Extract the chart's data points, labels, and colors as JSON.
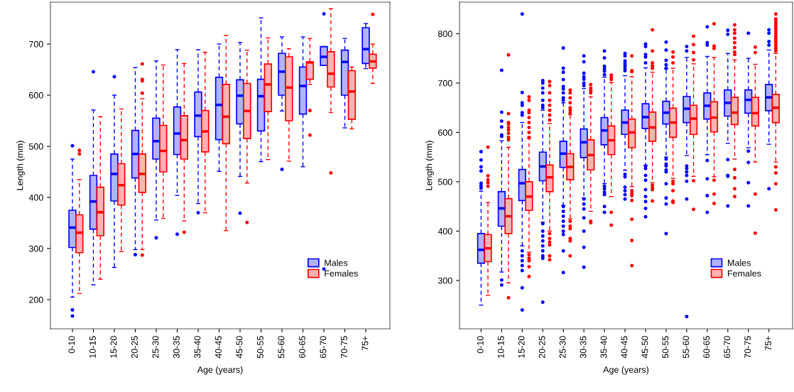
{
  "chart_data": [
    {
      "type": "box",
      "xlabel": "Age (years)",
      "ylabel": "Length (mm)",
      "categories": [
        "0-10",
        "10-15",
        "15-20",
        "20-25",
        "25-30",
        "30-35",
        "35-40",
        "40-45",
        "45-50",
        "50-55",
        "55-60",
        "60-65",
        "65-70",
        "70-75",
        "75+"
      ],
      "ylim": [
        143,
        782
      ],
      "yticks": [
        200,
        300,
        400,
        500,
        600,
        700
      ],
      "legend": "bottom right",
      "grid": false,
      "marker": "circle",
      "line_style": "dashed",
      "series": [
        {
          "name": "Males",
          "color": "#0000ff",
          "boxes": [
            {
              "low": 205,
              "q1": 302,
              "median": 341,
              "q3": 375,
              "high": 475,
              "outliers": [
                501,
                180,
                168
              ]
            },
            {
              "low": 229,
              "q1": 338,
              "median": 392,
              "q3": 443,
              "high": 571,
              "outliers": [
                646
              ]
            },
            {
              "low": 263,
              "q1": 393,
              "median": 446,
              "q3": 485,
              "high": 600,
              "outliers": [
                636
              ]
            },
            {
              "low": 298,
              "q1": 438,
              "median": 485,
              "q3": 531,
              "high": 654,
              "outliers": [
                288
              ]
            },
            {
              "low": 356,
              "q1": 475,
              "median": 510,
              "q3": 555,
              "high": 667,
              "outliers": [
                321
              ]
            },
            {
              "low": 404,
              "q1": 484,
              "median": 525,
              "q3": 577,
              "high": 689,
              "outliers": [
                328
              ]
            },
            {
              "low": 388,
              "q1": 519,
              "median": 560,
              "q3": 606,
              "high": 689,
              "outliers": [
                370
              ]
            },
            {
              "low": 451,
              "q1": 513,
              "median": 581,
              "q3": 635,
              "high": 700
            },
            {
              "low": 441,
              "q1": 544,
              "median": 599,
              "q3": 630,
              "high": 703,
              "outliers": [
                369
              ]
            },
            {
              "low": 470,
              "q1": 530,
              "median": 598,
              "q3": 631,
              "high": 751
            },
            {
              "low": 569,
              "q1": 600,
              "median": 646,
              "q3": 682,
              "high": 714,
              "outliers": [
                455
              ]
            },
            {
              "low": 460,
              "q1": 563,
              "median": 618,
              "q3": 655,
              "high": 714
            },
            {
              "low": 658,
              "q1": 658,
              "median": 675,
              "q3": 695,
              "high": 695,
              "outliers": [
                759,
                260
              ]
            },
            {
              "low": 536,
              "q1": 600,
              "median": 665,
              "q3": 688,
              "high": 711
            },
            {
              "low": 652,
              "q1": 662,
              "median": 690,
              "q3": 732,
              "high": 740
            }
          ]
        },
        {
          "name": "Females",
          "color": "#ff0000",
          "boxes": [
            {
              "low": 212,
              "q1": 292,
              "median": 331,
              "q3": 366,
              "high": 435,
              "outliers": [
                492,
                485
              ]
            },
            {
              "low": 240,
              "q1": 325,
              "median": 371,
              "q3": 420,
              "high": 558
            },
            {
              "low": 294,
              "q1": 385,
              "median": 424,
              "q3": 466,
              "high": 573
            },
            {
              "low": 298,
              "q1": 410,
              "median": 446,
              "q3": 485,
              "high": 593,
              "outliers": [
                661,
                631,
                628,
                604,
                287
              ]
            },
            {
              "low": 359,
              "q1": 450,
              "median": 491,
              "q3": 541,
              "high": 659
            },
            {
              "low": 354,
              "q1": 475,
              "median": 512,
              "q3": 560,
              "high": 662,
              "outliers": [
                332
              ]
            },
            {
              "low": 370,
              "q1": 489,
              "median": 529,
              "q3": 570,
              "high": 684
            },
            {
              "low": 335,
              "q1": 505,
              "median": 558,
              "q3": 621,
              "high": 717
            },
            {
              "low": 428,
              "q1": 515,
              "median": 569,
              "q3": 623,
              "high": 688,
              "outliers": [
                351
              ]
            },
            {
              "low": 474,
              "q1": 568,
              "median": 621,
              "q3": 661,
              "high": 712
            },
            {
              "low": 471,
              "q1": 550,
              "median": 615,
              "q3": 675,
              "high": 691
            },
            {
              "low": 621,
              "q1": 631,
              "median": 664,
              "q3": 665,
              "high": 711,
              "outliers": [
                570,
                522
              ]
            },
            {
              "low": 566,
              "q1": 616,
              "median": 642,
              "q3": 685,
              "high": 769,
              "outliers": [
                448
              ]
            },
            {
              "low": 534,
              "q1": 553,
              "median": 607,
              "q3": 648,
              "high": 655
            },
            {
              "low": 623,
              "q1": 653,
              "median": 666,
              "q3": 680,
              "high": 700,
              "outliers": [
                758
              ]
            }
          ]
        }
      ]
    },
    {
      "type": "box",
      "xlabel": "Age (years)",
      "ylabel": "Length (mm)",
      "categories": [
        "0-10",
        "10-15",
        "15-20",
        "20-25",
        "25-30",
        "30-35",
        "35-40",
        "40-45",
        "45-50",
        "50-55",
        "55-60",
        "60-65",
        "65-70",
        "70-75",
        "75+"
      ],
      "ylim": [
        202,
        864
      ],
      "yticks": [
        300,
        400,
        500,
        600,
        700,
        800
      ],
      "legend": "bottom right",
      "grid": false,
      "marker": "circle",
      "line_style": "dashed",
      "series": [
        {
          "name": "Males",
          "color": "#0000ff",
          "boxes": [
            {
              "low": 250,
              "q1": 335,
              "median": 362,
              "q3": 395,
              "high": 481,
              "outliers": [
                561,
                544,
                530,
                522,
                497,
                492,
                487
              ]
            },
            {
              "low": 317,
              "q1": 410,
              "median": 446,
              "q3": 480,
              "high": 583,
              "outliers": [
                726,
                641,
                623,
                611,
                595,
                592,
                301,
                291
              ]
            },
            {
              "low": 370,
              "q1": 462,
              "median": 497,
              "q3": 525,
              "high": 620,
              "outliers": [
                840,
                681,
                660,
                655,
                640,
                635,
                360,
                350,
                340,
                330,
                320,
                285,
                240
              ]
            },
            {
              "low": 418,
              "q1": 502,
              "median": 531,
              "q3": 560,
              "high": 645,
              "outliers": [
                705,
                700,
                690,
                680,
                665,
                655,
                650,
                415,
                400,
                390,
                380,
                370,
                360,
                350,
                345,
                256
              ]
            },
            {
              "low": 452,
              "q1": 529,
              "median": 557,
              "q3": 582,
              "high": 660,
              "outliers": [
                771,
                730,
                722,
                707,
                693,
                688,
                680,
                670,
                665,
                450,
                440,
                430,
                420,
                410,
                400,
                393,
                360,
                316
              ]
            },
            {
              "low": 467,
              "q1": 549,
              "median": 580,
              "q3": 607,
              "high": 689,
              "outliers": [
                755,
                743,
                720,
                713,
                708,
                700,
                695,
                465,
                455,
                445,
                427,
                400,
                367,
                327
              ]
            },
            {
              "low": 496,
              "q1": 575,
              "median": 604,
              "q3": 630,
              "high": 712,
              "outliers": [
                765,
                751,
                734,
                729,
                724,
                717,
                491,
                486,
                479,
                474,
                450,
                438
              ]
            },
            {
              "low": 523,
              "q1": 596,
              "median": 620,
              "q3": 645,
              "high": 715,
              "outliers": [
                760,
                755,
                745,
                740,
                735,
                730,
                725,
                515,
                510,
                489,
                482,
                474,
                465
              ]
            },
            {
              "low": 533,
              "q1": 608,
              "median": 631,
              "q3": 658,
              "high": 731,
              "outliers": [
                779,
                774,
                758,
                753,
                741,
                532,
                527,
                513,
                503,
                484,
                470,
                460,
                446,
                429
              ]
            },
            {
              "low": 550,
              "q1": 617,
              "median": 640,
              "q3": 663,
              "high": 729,
              "outliers": [
                783,
                767,
                746,
                737,
                730,
                546,
                536,
                532,
                524,
                520,
                496,
                467,
                455,
                395
              ]
            },
            {
              "low": 553,
              "q1": 620,
              "median": 648,
              "q3": 673,
              "high": 752,
              "outliers": [
                774,
                765,
                532,
                527,
                520,
                513,
                501,
                465,
                227
              ]
            },
            {
              "low": 555,
              "q1": 627,
              "median": 654,
              "q3": 680,
              "high": 754,
              "outliers": [
                814,
                782,
                777,
                543,
                506,
                472,
                438
              ]
            },
            {
              "low": 578,
              "q1": 633,
              "median": 660,
              "q3": 686,
              "high": 760,
              "outliers": [
                807,
                799,
                545,
                513,
                511,
                451
              ]
            },
            {
              "low": 569,
              "q1": 639,
              "median": 666,
              "q3": 686,
              "high": 750,
              "outliers": [
                801,
                562,
                539,
                498,
                451
              ]
            },
            {
              "low": 576,
              "q1": 644,
              "median": 671,
              "q3": 697,
              "high": 767,
              "outliers": [
                808,
                801,
                784,
                777,
                486
              ]
            }
          ]
        },
        {
          "name": "Females",
          "color": "#ff0000",
          "boxes": [
            {
              "low": 270,
              "q1": 338,
              "median": 365,
              "q3": 393,
              "high": 458,
              "outliers": [
                570,
                512,
                504,
                498,
                491
              ]
            },
            {
              "low": 295,
              "q1": 395,
              "median": 430,
              "q3": 466,
              "high": 570,
              "outliers": [
                757,
                638,
                620,
                617,
                610,
                605,
                598,
                590,
                585,
                265
              ]
            },
            {
              "low": 357,
              "q1": 442,
              "median": 470,
              "q3": 500,
              "high": 588,
              "outliers": [
                672,
                665,
                645,
                640,
                630,
                620,
                610,
                600,
                590,
                352,
                345,
                340,
                328,
                308
              ]
            },
            {
              "low": 400,
              "q1": 480,
              "median": 509,
              "q3": 534,
              "high": 618,
              "outliers": [
                703,
                695,
                680,
                665,
                655,
                645,
                635,
                625,
                395,
                385,
                378,
                372,
                350,
                342
              ]
            },
            {
              "low": 425,
              "q1": 504,
              "median": 530,
              "q3": 557,
              "high": 636,
              "outliers": [
                686,
                680,
                670,
                660,
                650,
                645,
                640,
                420,
                410,
                405,
                385,
                380,
                350
              ]
            },
            {
              "low": 440,
              "q1": 524,
              "median": 554,
              "q3": 585,
              "high": 672,
              "outliers": [
                697,
                690,
                685,
                680,
                420,
                417
              ]
            },
            {
              "low": 470,
              "q1": 555,
              "median": 584,
              "q3": 613,
              "high": 701,
              "outliers": [
                716,
                711,
                707,
                438,
                412
              ]
            },
            {
              "low": 490,
              "q1": 569,
              "median": 600,
              "q3": 627,
              "high": 713,
              "outliers": [
                755,
                725,
                723,
                482,
                477,
                472,
                462,
                424,
                381,
                330
              ]
            },
            {
              "low": 498,
              "q1": 582,
              "median": 610,
              "q3": 641,
              "high": 722,
              "outliers": [
                808,
                765,
                741,
                735,
                730,
                493,
                488,
                484,
                461
              ]
            },
            {
              "low": 507,
              "q1": 590,
              "median": 620,
              "q3": 649,
              "high": 730,
              "outliers": [
                763,
                753,
                741,
                501,
                496,
                482,
                461,
                458
              ]
            },
            {
              "low": 511,
              "q1": 596,
              "median": 628,
              "q3": 655,
              "high": 739,
              "outliers": [
                795,
                778,
                762,
                747,
                502,
                444
              ]
            },
            {
              "low": 510,
              "q1": 601,
              "median": 630,
              "q3": 662,
              "high": 752,
              "outliers": [
                820,
                775,
                770,
                503,
                475,
                456
              ]
            },
            {
              "low": 546,
              "q1": 616,
              "median": 640,
              "q3": 671,
              "high": 747,
              "outliers": [
                818,
                808,
                801,
                791,
                782,
                772,
                763,
                758,
                525,
                508,
                486,
                470
              ]
            },
            {
              "low": 540,
              "q1": 613,
              "median": 639,
              "q3": 671,
              "high": 738,
              "outliers": [
                773,
                762,
                475,
                396
              ]
            },
            {
              "low": 540,
              "q1": 620,
              "median": 650,
              "q3": 677,
              "high": 760,
              "outliers": [
                840,
                830,
                825,
                820,
                815,
                810,
                805,
                800,
                795,
                790,
                785,
                780,
                775,
                770,
                765,
                530,
                518,
                496,
                443
              ]
            }
          ]
        }
      ]
    }
  ]
}
